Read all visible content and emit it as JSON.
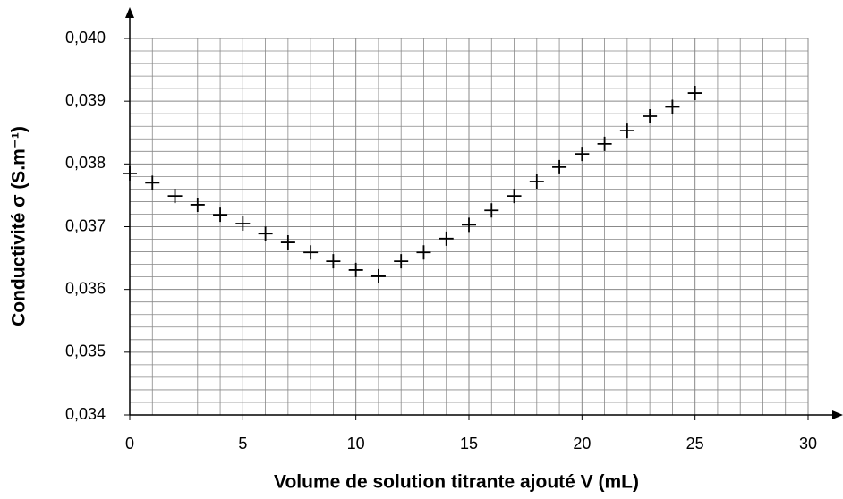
{
  "chart_data": {
    "type": "scatter",
    "x_label": "Volume de solution titrante ajouté V (mL)",
    "y_label": "Conductivité σ (S.m⁻¹)",
    "series": [
      {
        "color": "#000000",
        "x": [
          0,
          1,
          2,
          3,
          4,
          5,
          6,
          7,
          8,
          9,
          10,
          11,
          12,
          13,
          14,
          15,
          16,
          17,
          18,
          19,
          20,
          21,
          22,
          23,
          24,
          25
        ],
        "values": [
          0.03785,
          0.0377,
          0.03749,
          0.03735,
          0.03719,
          0.03705,
          0.03689,
          0.03675,
          0.03659,
          0.03645,
          0.03631,
          0.03621,
          0.03645,
          0.03659,
          0.03681,
          0.03703,
          0.03726,
          0.03749,
          0.03772,
          0.03795,
          0.03816,
          0.03832,
          0.03853,
          0.03876,
          0.03891,
          0.03913
        ]
      }
    ],
    "xlim": [
      0,
      30
    ],
    "xticks": [
      0,
      5,
      10,
      15,
      20,
      25,
      30
    ],
    "ylim": [
      0.034,
      0.04
    ],
    "yticks": [
      {
        "value": 0.034,
        "label": "0,034"
      },
      {
        "value": 0.035,
        "label": "0,035"
      },
      {
        "value": 0.036,
        "label": "0,036"
      },
      {
        "value": 0.037,
        "label": "0,037"
      },
      {
        "value": 0.038,
        "label": "0,038"
      },
      {
        "value": 0.039,
        "label": "0,039"
      },
      {
        "value": 0.04,
        "label": "0,040"
      }
    ],
    "grid": true
  }
}
